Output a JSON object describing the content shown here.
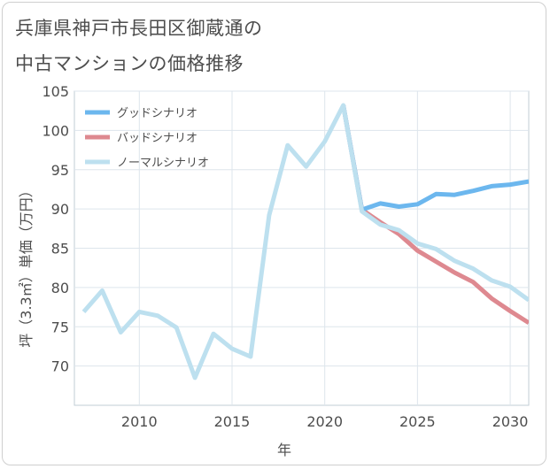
{
  "title": {
    "line1": "兵庫県神戸市長田区御蔵通の",
    "line2": "中古マンションの価格推移"
  },
  "chart_data": {
    "type": "line",
    "title": "兵庫県神戸市長田区御蔵通の中古マンションの価格推移",
    "xlabel": "年",
    "ylabel": "坪（3.3㎡）単価（万円）",
    "xlim": [
      2006.5,
      2031
    ],
    "ylim": [
      65,
      105
    ],
    "xticks": [
      2010,
      2015,
      2020,
      2025,
      2030
    ],
    "yticks": [
      70,
      75,
      80,
      85,
      90,
      95,
      100,
      105
    ],
    "grid": true,
    "legend_position": "top-left",
    "series": [
      {
        "name": "グッドシナリオ",
        "color": "#6cb7ee",
        "x": [
          2021,
          2022,
          2023,
          2024,
          2025,
          2026,
          2027,
          2028,
          2029,
          2030,
          2031
        ],
        "y": [
          103.2,
          89.9,
          90.7,
          90.3,
          90.6,
          91.9,
          91.8,
          92.3,
          92.9,
          93.1,
          93.5
        ]
      },
      {
        "name": "バッドシナリオ",
        "color": "#de8990",
        "x": [
          2021,
          2022,
          2023,
          2024,
          2025,
          2026,
          2027,
          2028,
          2029,
          2030,
          2031
        ],
        "y": [
          103.2,
          89.9,
          88.3,
          86.8,
          84.7,
          83.3,
          81.9,
          80.7,
          78.6,
          77.0,
          75.5
        ]
      },
      {
        "name": "ノーマルシナリオ",
        "color": "#bde0ef",
        "x": [
          2007,
          2008,
          2009,
          2010,
          2011,
          2012,
          2013,
          2014,
          2015,
          2016,
          2017,
          2018,
          2019,
          2020,
          2021,
          2022,
          2023,
          2024,
          2025,
          2026,
          2027,
          2028,
          2029,
          2030,
          2031
        ],
        "y": [
          76.9,
          79.6,
          74.3,
          76.9,
          76.4,
          74.9,
          68.5,
          74.1,
          72.2,
          71.2,
          89.2,
          98.1,
          95.4,
          98.6,
          103.2,
          89.7,
          88.0,
          87.3,
          85.6,
          84.9,
          83.4,
          82.4,
          80.9,
          80.1,
          78.4
        ]
      }
    ]
  }
}
